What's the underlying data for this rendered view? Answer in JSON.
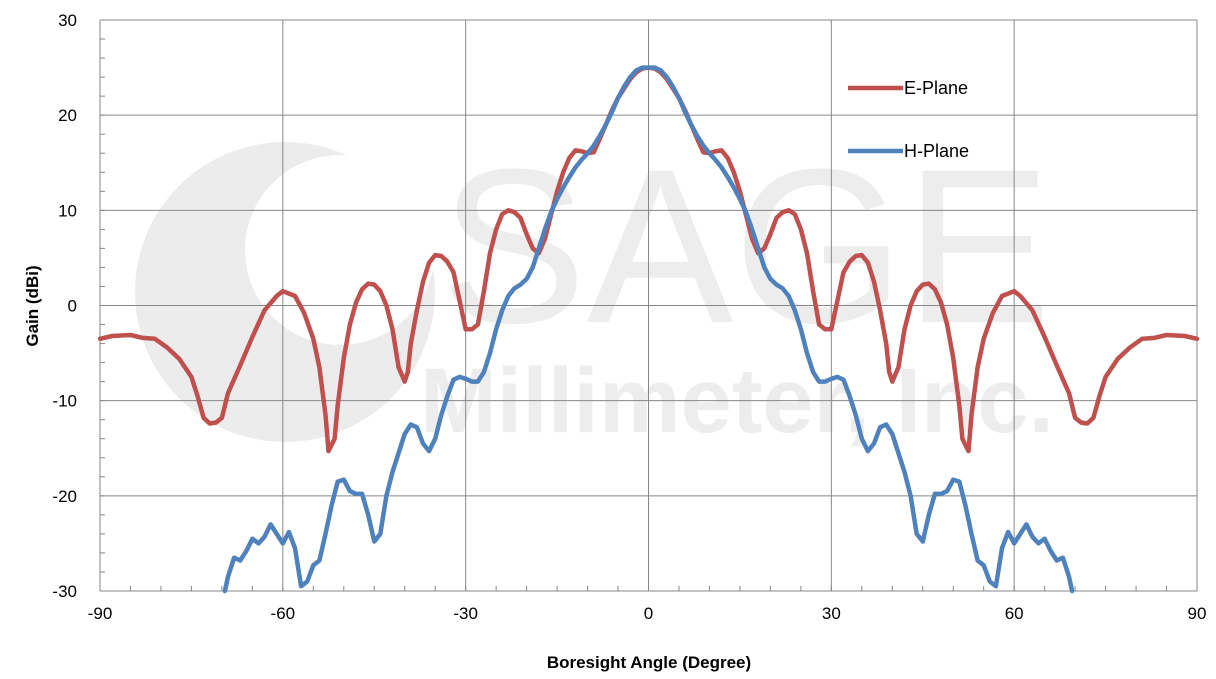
{
  "chart_data": {
    "type": "line",
    "title": "",
    "xlabel": "Boresight Angle (Degree)",
    "ylabel": "Gain (dBi)",
    "xlim": [
      -90,
      90
    ],
    "ylim": [
      -30,
      30
    ],
    "x_ticks": [
      -90,
      -60,
      -30,
      0,
      30,
      60,
      90
    ],
    "y_ticks": [
      -30,
      -20,
      -10,
      0,
      10,
      20,
      30
    ],
    "grid": true,
    "legend_position": "top-right",
    "watermark": [
      "SAGE",
      "Millimeter, Inc."
    ],
    "series": [
      {
        "name": "E-Plane",
        "color": "#c0504d",
        "points": [
          [
            -90,
            -3.5
          ],
          [
            -88,
            -3.2
          ],
          [
            -85,
            -3.1
          ],
          [
            -83,
            -3.4
          ],
          [
            -81,
            -3.5
          ],
          [
            -79,
            -4.4
          ],
          [
            -77,
            -5.6
          ],
          [
            -75,
            -7.5
          ],
          [
            -74,
            -9.5
          ],
          [
            -73,
            -11.8
          ],
          [
            -72,
            -12.4
          ],
          [
            -71,
            -12.3
          ],
          [
            -70,
            -11.8
          ],
          [
            -69,
            -9.2
          ],
          [
            -67,
            -6.3
          ],
          [
            -65,
            -3.3
          ],
          [
            -63,
            -0.5
          ],
          [
            -61,
            1.0
          ],
          [
            -60,
            1.5
          ],
          [
            -58,
            1.0
          ],
          [
            -56.5,
            -0.8
          ],
          [
            -55,
            -3.5
          ],
          [
            -54,
            -6.5
          ],
          [
            -53,
            -11.5
          ],
          [
            -52.5,
            -15.3
          ],
          [
            -51.5,
            -14.0
          ],
          [
            -51,
            -10.5
          ],
          [
            -50,
            -5.5
          ],
          [
            -49,
            -2.0
          ],
          [
            -48,
            0.3
          ],
          [
            -47,
            1.7
          ],
          [
            -46,
            2.3
          ],
          [
            -45,
            2.2
          ],
          [
            -44,
            1.5
          ],
          [
            -43,
            0.0
          ],
          [
            -42,
            -2.5
          ],
          [
            -41,
            -6.5
          ],
          [
            -40,
            -8.0
          ],
          [
            -39.5,
            -7.0
          ],
          [
            -39,
            -4.0
          ],
          [
            -38,
            -0.5
          ],
          [
            -37,
            2.5
          ],
          [
            -36,
            4.5
          ],
          [
            -35,
            5.3
          ],
          [
            -34,
            5.2
          ],
          [
            -33,
            4.6
          ],
          [
            -32,
            3.5
          ],
          [
            -31,
            0.5
          ],
          [
            -30,
            -2.5
          ],
          [
            -29,
            -2.5
          ],
          [
            -28,
            -2.0
          ],
          [
            -27,
            1.5
          ],
          [
            -26,
            5.5
          ],
          [
            -25,
            8.0
          ],
          [
            -24,
            9.6
          ],
          [
            -23,
            10.0
          ],
          [
            -22,
            9.8
          ],
          [
            -21,
            9.2
          ],
          [
            -20,
            7.5
          ],
          [
            -19,
            6.0
          ],
          [
            -18,
            5.5
          ],
          [
            -17,
            7.0
          ],
          [
            -16,
            9.5
          ],
          [
            -15,
            12.0
          ],
          [
            -14,
            14.0
          ],
          [
            -13,
            15.5
          ],
          [
            -12,
            16.3
          ],
          [
            -11,
            16.2
          ],
          [
            -10,
            16.0
          ],
          [
            -9,
            16.1
          ],
          [
            -8,
            17.5
          ],
          [
            -7,
            19.0
          ],
          [
            -6,
            20.5
          ],
          [
            -5,
            21.8
          ],
          [
            -4,
            22.8
          ],
          [
            -3,
            23.8
          ],
          [
            -2,
            24.5
          ],
          [
            -1,
            24.9
          ],
          [
            0,
            25.0
          ],
          [
            1,
            24.9
          ],
          [
            2,
            24.5
          ],
          [
            3,
            23.8
          ],
          [
            4,
            22.8
          ],
          [
            5,
            21.8
          ],
          [
            6,
            20.5
          ],
          [
            7,
            19.0
          ],
          [
            8,
            17.5
          ],
          [
            9,
            16.1
          ],
          [
            10,
            16.0
          ],
          [
            11,
            16.2
          ],
          [
            12,
            16.3
          ],
          [
            13,
            15.5
          ],
          [
            14,
            14.0
          ],
          [
            15,
            12.0
          ],
          [
            16,
            9.5
          ],
          [
            17,
            7.0
          ],
          [
            18,
            5.5
          ],
          [
            19,
            6.0
          ],
          [
            20,
            7.5
          ],
          [
            21,
            9.2
          ],
          [
            22,
            9.8
          ],
          [
            23,
            10.0
          ],
          [
            24,
            9.6
          ],
          [
            25,
            8.0
          ],
          [
            26,
            5.5
          ],
          [
            27,
            1.5
          ],
          [
            28,
            -2.0
          ],
          [
            29,
            -2.5
          ],
          [
            30,
            -2.5
          ],
          [
            31,
            0.5
          ],
          [
            32,
            3.5
          ],
          [
            33,
            4.6
          ],
          [
            34,
            5.2
          ],
          [
            35,
            5.3
          ],
          [
            36,
            4.5
          ],
          [
            37,
            2.5
          ],
          [
            38,
            -0.5
          ],
          [
            39,
            -4.0
          ],
          [
            39.5,
            -7.0
          ],
          [
            40,
            -8.0
          ],
          [
            41,
            -6.5
          ],
          [
            42,
            -2.5
          ],
          [
            43,
            0.0
          ],
          [
            44,
            1.5
          ],
          [
            45,
            2.2
          ],
          [
            46,
            2.3
          ],
          [
            47,
            1.7
          ],
          [
            48,
            0.3
          ],
          [
            49,
            -2.0
          ],
          [
            50,
            -5.5
          ],
          [
            51,
            -10.5
          ],
          [
            51.5,
            -14.0
          ],
          [
            52.5,
            -15.3
          ],
          [
            53,
            -11.5
          ],
          [
            54,
            -6.5
          ],
          [
            55,
            -3.5
          ],
          [
            56.5,
            -0.8
          ],
          [
            58,
            1.0
          ],
          [
            60,
            1.5
          ],
          [
            61,
            1.0
          ],
          [
            63,
            -0.5
          ],
          [
            65,
            -3.3
          ],
          [
            67,
            -6.3
          ],
          [
            69,
            -9.2
          ],
          [
            70,
            -11.8
          ],
          [
            71,
            -12.3
          ],
          [
            72,
            -12.4
          ],
          [
            73,
            -11.8
          ],
          [
            74,
            -9.5
          ],
          [
            75,
            -7.5
          ],
          [
            77,
            -5.6
          ],
          [
            79,
            -4.4
          ],
          [
            81,
            -3.5
          ],
          [
            83,
            -3.4
          ],
          [
            85,
            -3.1
          ],
          [
            88,
            -3.2
          ],
          [
            90,
            -3.5
          ]
        ]
      },
      {
        "name": "H-Plane",
        "color": "#4f81bd",
        "points": [
          [
            -69.5,
            -30
          ],
          [
            -69,
            -28.5
          ],
          [
            -68,
            -26.5
          ],
          [
            -67,
            -26.8
          ],
          [
            -66,
            -25.8
          ],
          [
            -65,
            -24.5
          ],
          [
            -64,
            -25.0
          ],
          [
            -63,
            -24.3
          ],
          [
            -62,
            -23.0
          ],
          [
            -61,
            -24.0
          ],
          [
            -60,
            -25.0
          ],
          [
            -59,
            -23.8
          ],
          [
            -58,
            -25.5
          ],
          [
            -57,
            -29.5
          ],
          [
            -56,
            -29.0
          ],
          [
            -55,
            -27.3
          ],
          [
            -54,
            -26.8
          ],
          [
            -53,
            -24.0
          ],
          [
            -52,
            -21.0
          ],
          [
            -51,
            -18.5
          ],
          [
            -50,
            -18.3
          ],
          [
            -49,
            -19.5
          ],
          [
            -48,
            -19.8
          ],
          [
            -47,
            -19.8
          ],
          [
            -46,
            -22.0
          ],
          [
            -45,
            -24.8
          ],
          [
            -44,
            -24.0
          ],
          [
            -43,
            -20.0
          ],
          [
            -42,
            -17.5
          ],
          [
            -41,
            -15.5
          ],
          [
            -40,
            -13.5
          ],
          [
            -39,
            -12.5
          ],
          [
            -38,
            -12.8
          ],
          [
            -37,
            -14.5
          ],
          [
            -36,
            -15.3
          ],
          [
            -35,
            -14.0
          ],
          [
            -34,
            -11.5
          ],
          [
            -33,
            -9.5
          ],
          [
            -32,
            -7.8
          ],
          [
            -31,
            -7.5
          ],
          [
            -30,
            -7.7
          ],
          [
            -29,
            -8.0
          ],
          [
            -28,
            -8.0
          ],
          [
            -27,
            -7.0
          ],
          [
            -26,
            -5.0
          ],
          [
            -25,
            -2.5
          ],
          [
            -24,
            -0.5
          ],
          [
            -23,
            1.0
          ],
          [
            -22,
            1.8
          ],
          [
            -21,
            2.2
          ],
          [
            -20,
            2.8
          ],
          [
            -19,
            4.0
          ],
          [
            -18,
            6.0
          ],
          [
            -17,
            8.0
          ],
          [
            -16,
            9.8
          ],
          [
            -15,
            11.2
          ],
          [
            -14,
            12.4
          ],
          [
            -13,
            13.5
          ],
          [
            -12,
            14.5
          ],
          [
            -11,
            15.3
          ],
          [
            -10,
            16.0
          ],
          [
            -9,
            16.8
          ],
          [
            -8,
            17.8
          ],
          [
            -7,
            19.0
          ],
          [
            -6,
            20.3
          ],
          [
            -5,
            21.8
          ],
          [
            -4,
            23.0
          ],
          [
            -3,
            24.0
          ],
          [
            -2,
            24.7
          ],
          [
            -1,
            25.0
          ],
          [
            0,
            25.0
          ],
          [
            1,
            25.0
          ],
          [
            2,
            24.7
          ],
          [
            3,
            24.0
          ],
          [
            4,
            23.0
          ],
          [
            5,
            21.8
          ],
          [
            6,
            20.3
          ],
          [
            7,
            19.0
          ],
          [
            8,
            17.8
          ],
          [
            9,
            16.8
          ],
          [
            10,
            16.0
          ],
          [
            11,
            15.3
          ],
          [
            12,
            14.5
          ],
          [
            13,
            13.5
          ],
          [
            14,
            12.4
          ],
          [
            15,
            11.2
          ],
          [
            16,
            9.8
          ],
          [
            17,
            8.0
          ],
          [
            18,
            6.0
          ],
          [
            19,
            4.0
          ],
          [
            20,
            2.8
          ],
          [
            21,
            2.2
          ],
          [
            22,
            1.8
          ],
          [
            23,
            1.0
          ],
          [
            24,
            -0.5
          ],
          [
            25,
            -2.5
          ],
          [
            26,
            -5.0
          ],
          [
            27,
            -7.0
          ],
          [
            28,
            -8.0
          ],
          [
            29,
            -8.0
          ],
          [
            30,
            -7.7
          ],
          [
            31,
            -7.5
          ],
          [
            32,
            -7.8
          ],
          [
            33,
            -9.5
          ],
          [
            34,
            -11.5
          ],
          [
            35,
            -14.0
          ],
          [
            36,
            -15.3
          ],
          [
            37,
            -14.5
          ],
          [
            38,
            -12.8
          ],
          [
            39,
            -12.5
          ],
          [
            40,
            -13.5
          ],
          [
            41,
            -15.5
          ],
          [
            42,
            -17.5
          ],
          [
            43,
            -20.0
          ],
          [
            44,
            -24.0
          ],
          [
            45,
            -24.8
          ],
          [
            46,
            -22.0
          ],
          [
            47,
            -19.8
          ],
          [
            48,
            -19.8
          ],
          [
            49,
            -19.5
          ],
          [
            50,
            -18.3
          ],
          [
            51,
            -18.5
          ],
          [
            52,
            -21.0
          ],
          [
            53,
            -24.0
          ],
          [
            54,
            -26.8
          ],
          [
            55,
            -27.3
          ],
          [
            56,
            -29.0
          ],
          [
            57,
            -29.5
          ],
          [
            58,
            -25.5
          ],
          [
            59,
            -23.8
          ],
          [
            60,
            -25.0
          ],
          [
            61,
            -24.0
          ],
          [
            62,
            -23.0
          ],
          [
            63,
            -24.3
          ],
          [
            64,
            -25.0
          ],
          [
            65,
            -24.5
          ],
          [
            66,
            -25.8
          ],
          [
            67,
            -26.8
          ],
          [
            68,
            -26.5
          ],
          [
            69,
            -28.5
          ],
          [
            69.5,
            -30
          ]
        ]
      }
    ]
  }
}
